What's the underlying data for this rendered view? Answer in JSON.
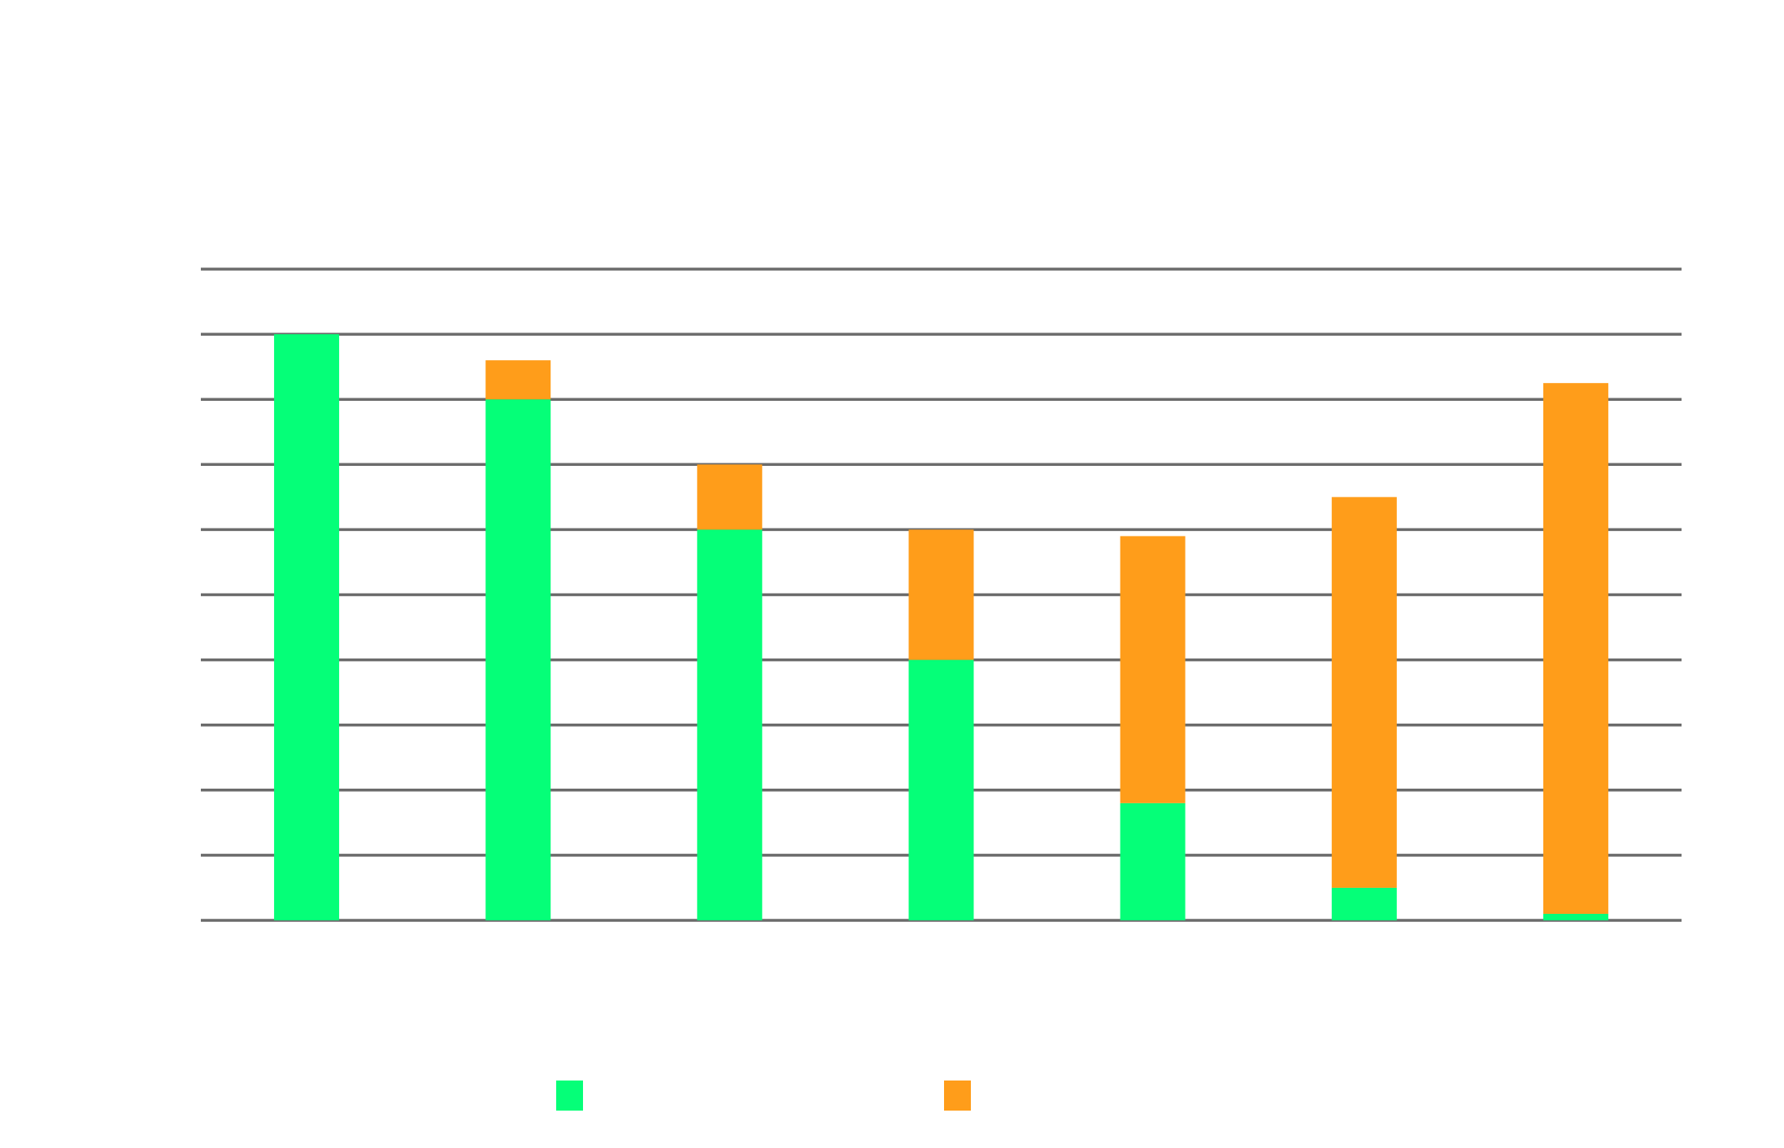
{
  "chart_data": {
    "type": "bar",
    "stacked": true,
    "title": "",
    "xlabel": "",
    "ylabel": "",
    "categories": [
      "",
      "",
      "",
      "",
      "",
      "",
      ""
    ],
    "ylim": [
      0,
      10
    ],
    "ytick_count": 11,
    "grid": true,
    "legend_position": "bottom",
    "series": [
      {
        "color": "#05FF78",
        "values": [
          9.0,
          8.0,
          6.0,
          4.0,
          1.8,
          0.5,
          0.1
        ]
      },
      {
        "color": "#FF9D1A",
        "values": [
          0.0,
          0.6,
          1.0,
          2.0,
          4.1,
          6.0,
          8.15
        ]
      }
    ],
    "colors": {
      "gridline": "#6B6B6B",
      "background": "#FFFFFF"
    }
  }
}
